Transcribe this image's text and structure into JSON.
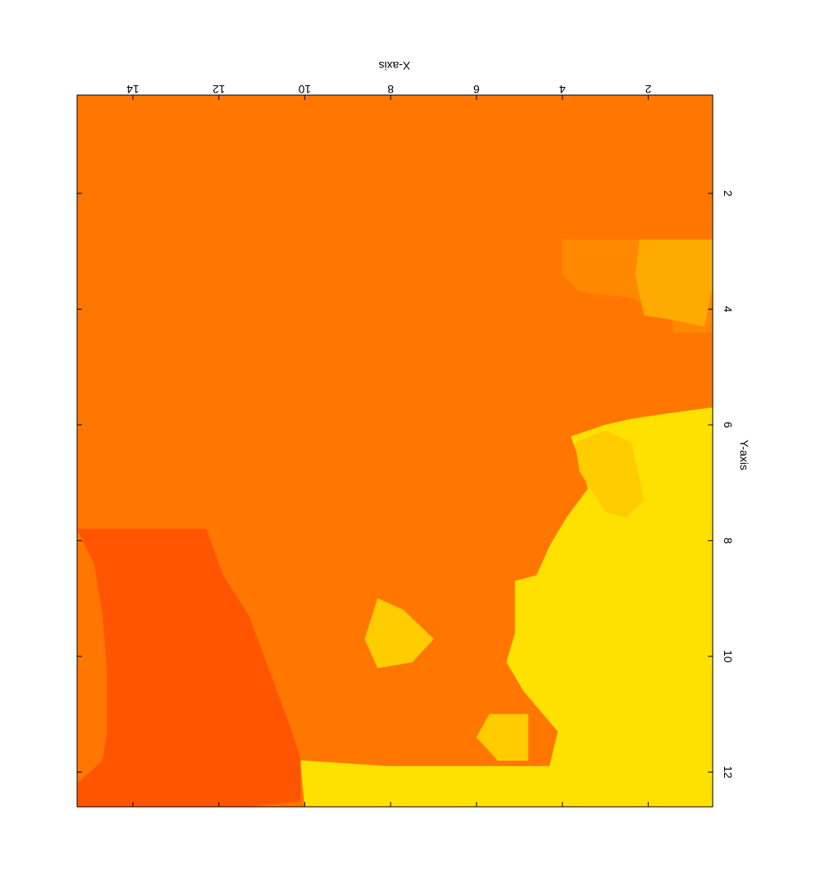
{
  "chart_data": {
    "type": "heatmap",
    "orientation": "rotated 180 degrees",
    "xlabel": "X-axis",
    "ylabel": "Y-axis",
    "xlim": [
      0.5,
      15.3
    ],
    "ylim": [
      0.3,
      12.6
    ],
    "xticks": [
      2,
      4,
      6,
      8,
      10,
      12,
      14
    ],
    "yticks": [
      2,
      4,
      6,
      8,
      10,
      12
    ],
    "colormap": "autumn",
    "colors": {
      "level_0": "#FF5500",
      "level_1": "#FF7700",
      "level_2": "#FF8800",
      "level_3": "#FFAA00",
      "level_4": "#FFCC00",
      "level_5": "#FFE100"
    },
    "regions": [
      {
        "level": 1,
        "description": "background",
        "polygon": [
          [
            0.5,
            0.3
          ],
          [
            15.3,
            0.3
          ],
          [
            15.3,
            12.6
          ],
          [
            0.5,
            12.6
          ]
        ]
      },
      {
        "level": 2,
        "polygon": [
          [
            0.5,
            2.8
          ],
          [
            4.0,
            2.8
          ],
          [
            4.0,
            3.4
          ],
          [
            3.6,
            3.7
          ],
          [
            2.4,
            3.8
          ],
          [
            1.5,
            4.1
          ],
          [
            1.4,
            4.4
          ],
          [
            0.5,
            4.4
          ]
        ]
      },
      {
        "level": 3,
        "polygon": [
          [
            0.5,
            2.8
          ],
          [
            2.2,
            2.8
          ],
          [
            2.3,
            3.4
          ],
          [
            2.1,
            4.1
          ],
          [
            1.3,
            4.2
          ],
          [
            0.7,
            4.3
          ],
          [
            0.5,
            3.6
          ]
        ]
      },
      {
        "level": 5,
        "polygon": [
          [
            0.5,
            5.7
          ],
          [
            1.5,
            5.8
          ],
          [
            2.4,
            5.9
          ],
          [
            3.0,
            6.0
          ],
          [
            3.8,
            6.2
          ],
          [
            3.6,
            6.6
          ],
          [
            3.4,
            7.1
          ],
          [
            3.9,
            7.6
          ],
          [
            4.3,
            8.1
          ],
          [
            4.6,
            8.6
          ],
          [
            5.1,
            8.7
          ],
          [
            5.1,
            9.6
          ],
          [
            5.3,
            10.1
          ],
          [
            4.9,
            10.6
          ],
          [
            4.1,
            11.3
          ],
          [
            4.3,
            11.9
          ],
          [
            5.1,
            11.9
          ],
          [
            8.1,
            11.9
          ],
          [
            10.1,
            11.8
          ],
          [
            10.0,
            12.6
          ],
          [
            0.5,
            12.6
          ]
        ]
      },
      {
        "level": 4,
        "polygon": [
          [
            2.4,
            6.3
          ],
          [
            3.0,
            6.1
          ],
          [
            3.7,
            6.3
          ],
          [
            3.6,
            6.8
          ],
          [
            3.0,
            7.5
          ],
          [
            2.5,
            7.6
          ],
          [
            2.1,
            7.3
          ]
        ]
      },
      {
        "level": 4,
        "polygon": [
          [
            4.8,
            11.0
          ],
          [
            5.7,
            11.0
          ],
          [
            6.0,
            11.4
          ],
          [
            5.5,
            11.8
          ],
          [
            4.8,
            11.8
          ]
        ]
      },
      {
        "level": 4,
        "polygon": [
          [
            7.0,
            9.7
          ],
          [
            7.7,
            9.2
          ],
          [
            8.3,
            9.0
          ],
          [
            8.6,
            9.7
          ],
          [
            8.3,
            10.2
          ],
          [
            7.5,
            10.1
          ]
        ]
      },
      {
        "level": 0,
        "polygon": [
          [
            11.4,
            12.6
          ],
          [
            10.1,
            12.5
          ],
          [
            10.1,
            11.8
          ],
          [
            10.3,
            11.3
          ],
          [
            10.8,
            10.3
          ],
          [
            11.3,
            9.3
          ],
          [
            11.9,
            8.6
          ],
          [
            12.3,
            7.8
          ],
          [
            15.3,
            7.8
          ],
          [
            14.9,
            8.4
          ],
          [
            14.7,
            9.3
          ],
          [
            14.6,
            10.3
          ],
          [
            14.6,
            11.3
          ],
          [
            14.7,
            11.8
          ],
          [
            15.3,
            12.2
          ],
          [
            15.3,
            12.6
          ]
        ]
      }
    ]
  }
}
